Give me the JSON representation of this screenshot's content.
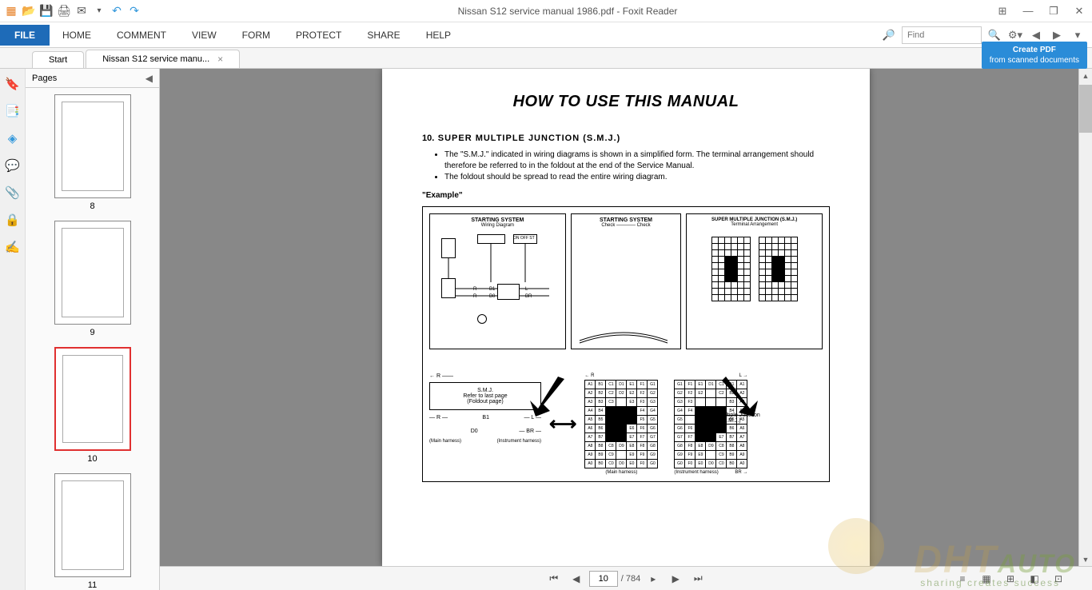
{
  "window": {
    "title": "Nissan S12 service manual 1986.pdf - Foxit Reader",
    "app_name": "Foxit Reader"
  },
  "titlebar_icons": [
    {
      "name": "app-icon",
      "glyph": "📄",
      "color": "#e67e22"
    },
    {
      "name": "open-icon",
      "glyph": "📂",
      "color": "#e6a23c"
    },
    {
      "name": "save-icon",
      "glyph": "💾",
      "color": "#8e44ad"
    },
    {
      "name": "print-icon",
      "glyph": "🖨",
      "color": "#555"
    },
    {
      "name": "email-icon",
      "glyph": "✉",
      "color": "#555"
    },
    {
      "name": "undo-icon",
      "glyph": "↶",
      "color": "#3498db"
    },
    {
      "name": "redo-icon",
      "glyph": "↷",
      "color": "#3498db"
    }
  ],
  "window_controls": {
    "grid": "⊞",
    "minimize": "—",
    "maximize": "❐",
    "close": "✕"
  },
  "menu": {
    "file": "FILE",
    "items": [
      "HOME",
      "COMMENT",
      "VIEW",
      "FORM",
      "PROTECT",
      "SHARE",
      "HELP"
    ]
  },
  "search": {
    "placeholder": "Find",
    "icon": "🔍"
  },
  "menubar_right_icons": [
    "⚙",
    "◀",
    "▶",
    "▾"
  ],
  "create_pdf": {
    "line1": "Create PDF",
    "line2": "from scanned documents"
  },
  "tabs": [
    {
      "label": "Start",
      "closable": false
    },
    {
      "label": "Nissan S12 service manu...",
      "closable": true
    }
  ],
  "sidebar": {
    "icons": [
      {
        "name": "bookmarks-icon",
        "glyph": "🔖",
        "color": "#8e44ad"
      },
      {
        "name": "pages-icon",
        "glyph": "📑",
        "color": "#3498db"
      },
      {
        "name": "layers-icon",
        "glyph": "◈",
        "color": "#3498db"
      },
      {
        "name": "comments-icon",
        "glyph": "💬",
        "color": "#e67e22"
      },
      {
        "name": "attachments-icon",
        "glyph": "📎",
        "color": "#3498db"
      },
      {
        "name": "security-icon",
        "glyph": "🔒",
        "color": "#e6a23c"
      },
      {
        "name": "signatures-icon",
        "glyph": "✍",
        "color": "#8e44ad"
      }
    ],
    "panel_title": "Pages",
    "collapse": "◀"
  },
  "thumbnails": [
    {
      "num": "8",
      "current": false
    },
    {
      "num": "9",
      "current": false
    },
    {
      "num": "10",
      "current": true
    },
    {
      "num": "11",
      "current": false
    }
  ],
  "document": {
    "title": "HOW TO USE THIS MANUAL",
    "section_num": "10.",
    "section_title": "SUPER MULTIPLE JUNCTION (S.M.J.)",
    "bullets": [
      "The \"S.M.J.\" indicated in wiring diagrams is shown in a simplified form. The terminal arrangement should therefore be referred to in the foldout at the end of the Service Manual.",
      "The foldout should be spread to read the entire wiring diagram."
    ],
    "example_label": "\"Example\"",
    "diagram": {
      "top_panels": [
        {
          "title": "STARTING SYSTEM",
          "sub": "Wiring Diagram"
        },
        {
          "title": "STARTING SYSTEM",
          "sub": "Check ———— Check"
        },
        {
          "title": "SUPER MULTIPLE JUNCTION (S.M.J.)",
          "sub": "Terminal Arrangement"
        }
      ],
      "smj_box": {
        "line1": "S.M.J.",
        "line2": "Refer to last page",
        "line3": "(Foldout page)"
      },
      "smj_label": "Super Multiple Junction\n(S.M.J.)",
      "wires": {
        "r": "R",
        "l": "L",
        "br": "BR",
        "b0": "B0",
        "b1": "B1",
        "d0": "D0"
      },
      "harness_left": "(Main harness)",
      "harness_right": "(Instrument harness)",
      "grid_labels_left": [
        "A1",
        "B1",
        "C1",
        "D1",
        "E1",
        "F1",
        "G1",
        "A2",
        "B2",
        "C2",
        "D2",
        "E2",
        "F2",
        "G2",
        "A3",
        "B3",
        "C3",
        "",
        "E3",
        "F3",
        "G3",
        "A4",
        "B4",
        "",
        "",
        "",
        "F4",
        "G4",
        "A5",
        "B5",
        "",
        "",
        "",
        "F5",
        "G5",
        "A6",
        "B6",
        "",
        "",
        "E6",
        "F6",
        "G6",
        "A7",
        "B7",
        "",
        "",
        "E7",
        "F7",
        "G7",
        "A8",
        "B8",
        "C8",
        "D9",
        "E8",
        "F8",
        "G8",
        "A9",
        "B9",
        "C9",
        "",
        "E9",
        "F9",
        "G9",
        "A0",
        "B0",
        "C0",
        "D0",
        "E0",
        "F0",
        "G0"
      ],
      "grid_labels_right": [
        "G1",
        "F1",
        "E1",
        "D1",
        "C1",
        "B1",
        "A1",
        "G2",
        "F2",
        "E2",
        "",
        "C2",
        "B2",
        "A2",
        "G3",
        "F3",
        "",
        "",
        "",
        "B3",
        "A3",
        "G4",
        "F4",
        "",
        "",
        "",
        "B4",
        "A4",
        "G5",
        "",
        "",
        "",
        "",
        "B5",
        "A5",
        "G6",
        "F6",
        "",
        "",
        "",
        "B6",
        "A6",
        "G7",
        "F7",
        "",
        "",
        "E7",
        "B7",
        "A7",
        "G8",
        "F8",
        "E8",
        "D9",
        "C8",
        "B8",
        "A8",
        "G9",
        "F9",
        "E9",
        "",
        "C9",
        "B9",
        "A9",
        "G0",
        "F0",
        "E0",
        "D0",
        "C0",
        "B0",
        "A0"
      ],
      "bottom_harness_left": "(Main harness)",
      "bottom_harness_right": "(Instrument harness)"
    }
  },
  "navigation": {
    "first": "⏮",
    "prev": "◀",
    "current_page": "10",
    "total_pages": "/ 784",
    "next": "▶",
    "go": "▸",
    "last": "⏭",
    "right_icons": [
      "≡",
      "▦",
      "⊞",
      "◧",
      "⊡"
    ]
  },
  "watermark": {
    "main": "DHT",
    "sub": "sharing creates success",
    "suffix": "AUTO"
  },
  "colors": {
    "file_btn": "#1e6bb8",
    "accent": "#2a8cd8",
    "current_border": "#e03030",
    "viewer_bg": "#888888",
    "watermark": "rgba(200,160,60,0.4)"
  }
}
